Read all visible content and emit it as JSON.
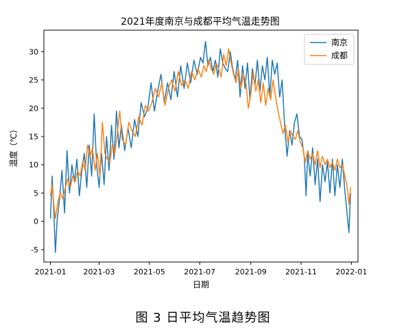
{
  "caption": "图 3 日平均气温趋势图",
  "chart_data": {
    "type": "line",
    "title": "2021年度南京与成都平均气温走势图",
    "xlabel": "日期",
    "ylabel": "温度（℃）",
    "x_range": [
      "2020-12-24",
      "2022-01-09"
    ],
    "ylim": [
      -7.2,
      33.8
    ],
    "x_ticks": [
      {
        "date": "2021-01-01",
        "label": "2021-01"
      },
      {
        "date": "2021-03-01",
        "label": "2021-03"
      },
      {
        "date": "2021-05-01",
        "label": "2021-05"
      },
      {
        "date": "2021-07-01",
        "label": "2021-07"
      },
      {
        "date": "2021-09-01",
        "label": "2021-09"
      },
      {
        "date": "2021-11-01",
        "label": "2021-11"
      },
      {
        "date": "2022-01-01",
        "label": "2022-01"
      }
    ],
    "y_ticks": [
      -5,
      0,
      5,
      10,
      15,
      20,
      25,
      30
    ],
    "grid": false,
    "legend_position": "upper-right",
    "colors": {
      "nanjing": "#1f77b4",
      "chengdu": "#ff7f0e"
    },
    "series": [
      {
        "name": "南京",
        "color": "#1f77b4",
        "points": [
          [
            "2021-01-01",
            0.5
          ],
          [
            "2021-01-03",
            8
          ],
          [
            "2021-01-05",
            2
          ],
          [
            "2021-01-07",
            -5.5
          ],
          [
            "2021-01-09",
            0
          ],
          [
            "2021-01-12",
            4
          ],
          [
            "2021-01-15",
            9
          ],
          [
            "2021-01-18",
            1.5
          ],
          [
            "2021-01-21",
            12.5
          ],
          [
            "2021-01-24",
            5
          ],
          [
            "2021-01-27",
            10
          ],
          [
            "2021-01-30",
            7
          ],
          [
            "2021-02-02",
            11
          ],
          [
            "2021-02-05",
            4.5
          ],
          [
            "2021-02-08",
            9
          ],
          [
            "2021-02-11",
            12
          ],
          [
            "2021-02-14",
            6
          ],
          [
            "2021-02-17",
            13.5
          ],
          [
            "2021-02-20",
            8
          ],
          [
            "2021-02-23",
            19
          ],
          [
            "2021-02-26",
            10
          ],
          [
            "2021-03-01",
            6
          ],
          [
            "2021-03-04",
            12
          ],
          [
            "2021-03-07",
            6.5
          ],
          [
            "2021-03-10",
            15
          ],
          [
            "2021-03-13",
            9
          ],
          [
            "2021-03-16",
            17
          ],
          [
            "2021-03-19",
            11
          ],
          [
            "2021-03-22",
            19.5
          ],
          [
            "2021-03-25",
            13
          ],
          [
            "2021-03-28",
            17
          ],
          [
            "2021-04-01",
            12.5
          ],
          [
            "2021-04-05",
            16.5
          ],
          [
            "2021-04-09",
            13
          ],
          [
            "2021-04-13",
            18
          ],
          [
            "2021-04-17",
            15
          ],
          [
            "2021-04-21",
            21
          ],
          [
            "2021-04-25",
            18.5
          ],
          [
            "2021-04-29",
            20
          ],
          [
            "2021-05-03",
            24.5
          ],
          [
            "2021-05-07",
            19.5
          ],
          [
            "2021-05-11",
            23
          ],
          [
            "2021-05-15",
            26
          ],
          [
            "2021-05-19",
            21
          ],
          [
            "2021-05-23",
            24.5
          ],
          [
            "2021-05-27",
            21.5
          ],
          [
            "2021-05-31",
            26.5
          ],
          [
            "2021-06-04",
            22
          ],
          [
            "2021-06-08",
            27.5
          ],
          [
            "2021-06-12",
            23.5
          ],
          [
            "2021-06-16",
            28
          ],
          [
            "2021-06-20",
            24.5
          ],
          [
            "2021-06-24",
            28.5
          ],
          [
            "2021-06-28",
            26
          ],
          [
            "2021-07-02",
            29
          ],
          [
            "2021-07-05",
            28
          ],
          [
            "2021-07-08",
            31.8
          ],
          [
            "2021-07-11",
            27.5
          ],
          [
            "2021-07-14",
            29
          ],
          [
            "2021-07-17",
            26.5
          ],
          [
            "2021-07-20",
            28.5
          ],
          [
            "2021-07-23",
            25.5
          ],
          [
            "2021-07-26",
            30.5
          ],
          [
            "2021-07-29",
            28
          ],
          [
            "2021-08-01",
            27
          ],
          [
            "2021-08-04",
            26.5
          ],
          [
            "2021-08-07",
            30
          ],
          [
            "2021-08-10",
            27
          ],
          [
            "2021-08-13",
            25
          ],
          [
            "2021-08-16",
            28.5
          ],
          [
            "2021-08-19",
            22
          ],
          [
            "2021-08-22",
            27.5
          ],
          [
            "2021-08-25",
            23.5
          ],
          [
            "2021-08-28",
            28
          ],
          [
            "2021-08-31",
            21.5
          ],
          [
            "2021-09-03",
            27
          ],
          [
            "2021-09-06",
            24
          ],
          [
            "2021-09-09",
            28.5
          ],
          [
            "2021-09-12",
            23
          ],
          [
            "2021-09-15",
            27.5
          ],
          [
            "2021-09-18",
            25
          ],
          [
            "2021-09-21",
            29
          ],
          [
            "2021-09-24",
            22
          ],
          [
            "2021-09-27",
            28.5
          ],
          [
            "2021-09-30",
            26
          ],
          [
            "2021-10-03",
            28
          ],
          [
            "2021-10-06",
            22
          ],
          [
            "2021-10-09",
            25
          ],
          [
            "2021-10-12",
            17
          ],
          [
            "2021-10-15",
            11.5
          ],
          [
            "2021-10-18",
            16
          ],
          [
            "2021-10-21",
            13.5
          ],
          [
            "2021-10-24",
            17.5
          ],
          [
            "2021-10-27",
            19
          ],
          [
            "2021-10-30",
            15
          ],
          [
            "2021-11-02",
            14.5
          ],
          [
            "2021-11-05",
            11
          ],
          [
            "2021-11-07",
            4.5
          ],
          [
            "2021-11-09",
            12
          ],
          [
            "2021-11-12",
            8
          ],
          [
            "2021-11-15",
            13
          ],
          [
            "2021-11-18",
            6.5
          ],
          [
            "2021-11-21",
            11
          ],
          [
            "2021-11-24",
            3.5
          ],
          [
            "2021-11-27",
            10
          ],
          [
            "2021-11-30",
            7
          ],
          [
            "2021-12-03",
            10.5
          ],
          [
            "2021-12-06",
            5
          ],
          [
            "2021-12-09",
            11
          ],
          [
            "2021-12-12",
            4.5
          ],
          [
            "2021-12-15",
            10
          ],
          [
            "2021-12-18",
            6
          ],
          [
            "2021-12-21",
            11
          ],
          [
            "2021-12-24",
            5.5
          ],
          [
            "2021-12-27",
            1
          ],
          [
            "2021-12-29",
            -2
          ],
          [
            "2021-12-31",
            5
          ]
        ]
      },
      {
        "name": "成都",
        "color": "#ff7f0e",
        "points": [
          [
            "2021-01-01",
            4.5
          ],
          [
            "2021-01-03",
            6.5
          ],
          [
            "2021-01-05",
            3
          ],
          [
            "2021-01-07",
            0.5
          ],
          [
            "2021-01-10",
            3.5
          ],
          [
            "2021-01-13",
            5
          ],
          [
            "2021-01-16",
            4
          ],
          [
            "2021-01-19",
            6
          ],
          [
            "2021-01-22",
            7.5
          ],
          [
            "2021-01-25",
            6
          ],
          [
            "2021-01-28",
            8
          ],
          [
            "2021-01-31",
            7
          ],
          [
            "2021-02-03",
            9
          ],
          [
            "2021-02-06",
            8
          ],
          [
            "2021-02-09",
            10.5
          ],
          [
            "2021-02-12",
            9
          ],
          [
            "2021-02-15",
            13.5
          ],
          [
            "2021-02-18",
            11.5
          ],
          [
            "2021-02-21",
            13
          ],
          [
            "2021-02-24",
            9
          ],
          [
            "2021-02-27",
            12
          ],
          [
            "2021-03-02",
            8
          ],
          [
            "2021-03-05",
            17.5
          ],
          [
            "2021-03-08",
            12
          ],
          [
            "2021-03-11",
            11
          ],
          [
            "2021-03-14",
            10.5
          ],
          [
            "2021-03-17",
            13.5
          ],
          [
            "2021-03-20",
            12
          ],
          [
            "2021-03-23",
            15.5
          ],
          [
            "2021-03-26",
            19.5
          ],
          [
            "2021-03-29",
            14.5
          ],
          [
            "2021-04-02",
            13.5
          ],
          [
            "2021-04-06",
            17.5
          ],
          [
            "2021-04-10",
            16
          ],
          [
            "2021-04-14",
            15
          ],
          [
            "2021-04-18",
            18.5
          ],
          [
            "2021-04-22",
            17
          ],
          [
            "2021-04-26",
            20.5
          ],
          [
            "2021-04-30",
            19.5
          ],
          [
            "2021-05-04",
            21
          ],
          [
            "2021-05-08",
            23.5
          ],
          [
            "2021-05-12",
            22
          ],
          [
            "2021-05-16",
            24.5
          ],
          [
            "2021-05-20",
            20.5
          ],
          [
            "2021-05-24",
            23.5
          ],
          [
            "2021-05-28",
            25
          ],
          [
            "2021-06-01",
            23
          ],
          [
            "2021-06-05",
            26.5
          ],
          [
            "2021-06-09",
            24
          ],
          [
            "2021-06-13",
            25
          ],
          [
            "2021-06-17",
            23.5
          ],
          [
            "2021-06-21",
            26.5
          ],
          [
            "2021-06-25",
            25
          ],
          [
            "2021-06-29",
            27
          ],
          [
            "2021-07-03",
            25.5
          ],
          [
            "2021-07-06",
            27.5
          ],
          [
            "2021-07-09",
            26.5
          ],
          [
            "2021-07-12",
            28.5
          ],
          [
            "2021-07-15",
            27
          ],
          [
            "2021-07-18",
            26
          ],
          [
            "2021-07-21",
            28
          ],
          [
            "2021-07-24",
            27
          ],
          [
            "2021-07-27",
            25.5
          ],
          [
            "2021-07-30",
            29.5
          ],
          [
            "2021-08-02",
            27.5
          ],
          [
            "2021-08-05",
            30.5
          ],
          [
            "2021-08-08",
            28
          ],
          [
            "2021-08-11",
            26
          ],
          [
            "2021-08-14",
            24.5
          ],
          [
            "2021-08-17",
            27
          ],
          [
            "2021-08-20",
            23.5
          ],
          [
            "2021-08-23",
            26
          ],
          [
            "2021-08-26",
            24.5
          ],
          [
            "2021-08-29",
            20
          ],
          [
            "2021-09-01",
            22.5
          ],
          [
            "2021-09-04",
            26.5
          ],
          [
            "2021-09-07",
            23
          ],
          [
            "2021-09-10",
            25
          ],
          [
            "2021-09-13",
            21
          ],
          [
            "2021-09-16",
            24.5
          ],
          [
            "2021-09-19",
            20.5
          ],
          [
            "2021-09-22",
            23.5
          ],
          [
            "2021-09-25",
            21.5
          ],
          [
            "2021-09-28",
            25
          ],
          [
            "2021-10-01",
            22
          ],
          [
            "2021-10-04",
            19.5
          ],
          [
            "2021-10-07",
            17.5
          ],
          [
            "2021-10-10",
            15.5
          ],
          [
            "2021-10-13",
            17
          ],
          [
            "2021-10-16",
            14
          ],
          [
            "2021-10-19",
            16
          ],
          [
            "2021-10-22",
            15
          ],
          [
            "2021-10-25",
            14.5
          ],
          [
            "2021-10-28",
            16
          ],
          [
            "2021-10-31",
            14
          ],
          [
            "2021-11-03",
            13
          ],
          [
            "2021-11-06",
            10.5
          ],
          [
            "2021-11-09",
            12.5
          ],
          [
            "2021-11-12",
            11
          ],
          [
            "2021-11-15",
            12
          ],
          [
            "2021-11-18",
            10
          ],
          [
            "2021-11-21",
            12.5
          ],
          [
            "2021-11-24",
            9.5
          ],
          [
            "2021-11-27",
            11.5
          ],
          [
            "2021-11-30",
            10
          ],
          [
            "2021-12-03",
            11
          ],
          [
            "2021-12-06",
            9.5
          ],
          [
            "2021-12-09",
            10.5
          ],
          [
            "2021-12-12",
            9
          ],
          [
            "2021-12-15",
            11
          ],
          [
            "2021-12-18",
            9.5
          ],
          [
            "2021-12-21",
            10
          ],
          [
            "2021-12-24",
            8
          ],
          [
            "2021-12-27",
            6
          ],
          [
            "2021-12-29",
            3
          ],
          [
            "2021-12-31",
            6
          ]
        ]
      }
    ]
  }
}
